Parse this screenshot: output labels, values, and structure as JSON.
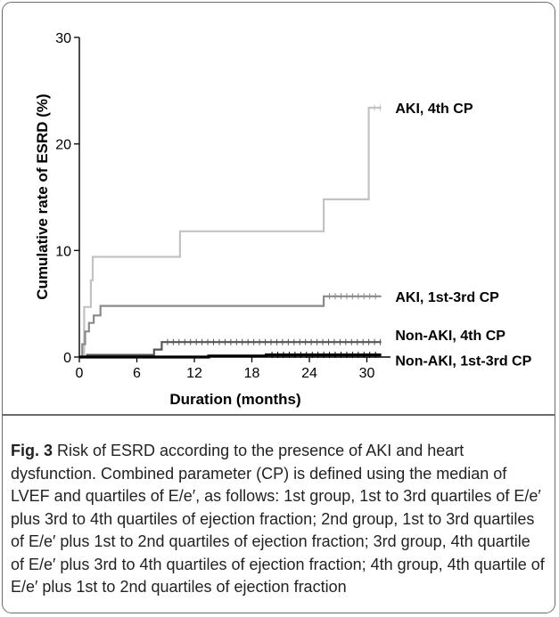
{
  "chart_data": {
    "type": "line",
    "xlabel": "Duration (months)",
    "ylabel": "Cumulative rate of ESRD (%)",
    "xlim": [
      0,
      32
    ],
    "ylim": [
      0,
      30
    ],
    "xticks": [
      0,
      6,
      12,
      18,
      24,
      30
    ],
    "yticks": [
      0,
      10,
      20,
      30
    ],
    "grid": false,
    "series": [
      {
        "name": "AKI, 4th CP",
        "color": "#c2c2c2",
        "x": [
          0,
          0.5,
          1.2,
          1.4,
          10.5,
          25.5,
          30.2,
          31.5
        ],
        "y": [
          0,
          4.7,
          7.2,
          9.4,
          11.8,
          14.8,
          23.4,
          23.4
        ]
      },
      {
        "name": "AKI, 1st-3rd CP",
        "color": "#8a8a8a",
        "x": [
          0,
          0.3,
          0.6,
          1.0,
          1.5,
          2.2,
          25.5,
          31.5
        ],
        "y": [
          0,
          1.2,
          2.4,
          3.2,
          3.9,
          4.8,
          5.7,
          5.7
        ]
      },
      {
        "name": "Non-AKI, 4th CP",
        "color": "#555555",
        "x": [
          0,
          0.8,
          7.8,
          8.6,
          31.5
        ],
        "y": [
          0,
          0.2,
          0.7,
          1.4,
          1.4
        ]
      },
      {
        "name": "Non-AKI, 1st-3rd CP",
        "color": "#000000",
        "x": [
          0,
          13.5,
          19.5,
          31.5
        ],
        "y": [
          0,
          0.1,
          0.2,
          0.2
        ]
      }
    ]
  },
  "caption": {
    "label": "Fig. 3",
    "text": " Risk of ESRD according to the presence of AKI and heart dysfunction. Combined parameter (CP) is defined using the median of LVEF and quartiles of E/e′, as follows: 1st group, 1st to 3rd quartiles of E/e′ plus 3rd to 4th quartiles of ejection fraction; 2nd group, 1st to 3rd quartiles of E/e′ plus 1st to 2nd quartiles of ejection fraction; 3rd group, 4th quartile of E/e′ plus 3rd to 4th quartiles of ejection fraction; 4th group, 4th quartile of E/e′ plus 1st to 2nd quartiles of ejection fraction"
  }
}
